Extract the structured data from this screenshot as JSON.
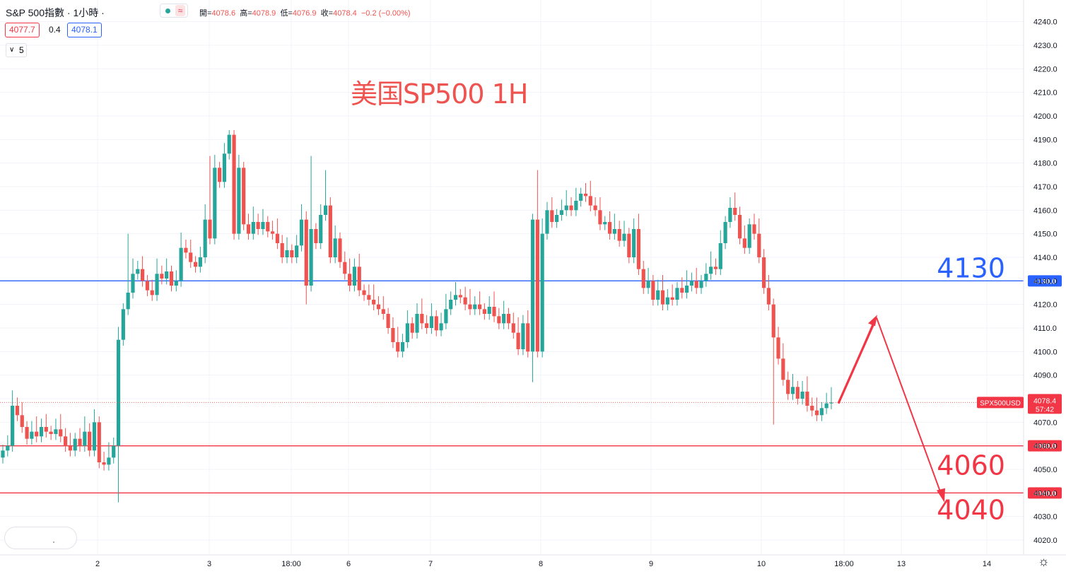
{
  "header": {
    "title": "S&P 500指數 · 1小時 ·",
    "ohlc": {
      "open_label": "開=",
      "open": "4078.6",
      "high_label": "高=",
      "high": "4078.9",
      "low_label": "低=",
      "low": "4076.9",
      "close_label": "收=",
      "close": "4078.4",
      "change": "−0.2 (−0.00%)"
    },
    "bid": "4077.7",
    "spread": "0.4",
    "ask": "4078.1",
    "indicator_count": "5",
    "status_dot_color": "#26a69a",
    "wave_symbol": "≈"
  },
  "annotation": {
    "text": "美国SP500 1H",
    "color": "#ef5350"
  },
  "price_axis": {
    "ticks": [
      "4240.0",
      "4230.0",
      "4220.0",
      "4210.0",
      "4200.0",
      "4190.0",
      "4180.0",
      "4170.0",
      "4160.0",
      "4150.0",
      "4140.0",
      "4130.0",
      "4120.0",
      "4110.0",
      "4100.0",
      "4090.0",
      "4080.0",
      "4070.0",
      "4060.0",
      "4050.0",
      "4040.0",
      "4030.0",
      "4020.0"
    ],
    "range": [
      4016,
      4246
    ]
  },
  "time_axis": {
    "labels": [
      "2",
      "3",
      "18:00",
      "6",
      "7",
      "8",
      "9",
      "10",
      "18:00",
      "13",
      "14"
    ]
  },
  "levels": [
    {
      "label": "4130",
      "value": 4130,
      "color": "#2962ff",
      "axis_label": "4130.0"
    },
    {
      "label": "4060",
      "value": 4060,
      "color": "#f23645",
      "axis_label": "4060.0"
    },
    {
      "label": "4040",
      "value": 4040,
      "color": "#f23645",
      "axis_label": "4040.0"
    }
  ],
  "current": {
    "symbol": "SPX500USD",
    "price": "4078.4",
    "countdown": "57:42",
    "value": 4078.4,
    "color": "#f23645"
  },
  "colors": {
    "up": "#26a69a",
    "down": "#ef5350",
    "grid": "#f0f3fa",
    "axis_text": "#131722"
  },
  "chart_data": {
    "type": "candlestick",
    "series": [
      {
        "name": "SPX500USD",
        "closes": [
          4058,
          4060,
          4077,
          4073,
          4068,
          4063,
          4066,
          4064,
          4068,
          4066,
          4065,
          4067,
          4064,
          4060,
          4058,
          4063,
          4060,
          4066,
          4058,
          4070,
          4053,
          4052,
          4055,
          4060,
          4105,
          4118,
          4125,
          4133,
          4135,
          4130,
          4126,
          4124,
          4133,
          4131,
          4134,
          4128,
          4130,
          4144,
          4142,
          4138,
          4136,
          4140,
          4156,
          4148,
          4178,
          4172,
          4184,
          4192,
          4150,
          4178,
          4154,
          4150,
          4155,
          4152,
          4155,
          4151,
          4150,
          4146,
          4140,
          4143,
          4140,
          4145,
          4156,
          4128,
          4152,
          4146,
          4158,
          4162,
          4140,
          4148,
          4138,
          4133,
          4128,
          4136,
          4126,
          4124,
          4122,
          4120,
          4118,
          4116,
          4110,
          4104,
          4100,
          4104,
          4112,
          4108,
          4116,
          4112,
          4110,
          4115,
          4109,
          4112,
          4118,
          4122,
          4124,
          4123,
          4120,
          4118,
          4120,
          4118,
          4116,
          4119,
          4115,
          4112,
          4116,
          4112,
          4108,
          4101,
          4112,
          4100,
          4156,
          4100,
          4150,
          4160,
          4155,
          4158,
          4160,
          4162,
          4160,
          4164,
          4167,
          4166,
          4162,
          4160,
          4154,
          4155,
          4150,
          4152,
          4147,
          4150,
          4140,
          4152,
          4135,
          4127,
          4130,
          4122,
          4126,
          4120,
          4123,
          4122,
          4127,
          4125,
          4128,
          4130,
          4127,
          4130,
          4133,
          4136,
          4135,
          4146,
          4155,
          4161,
          4158,
          4148,
          4144,
          4154,
          4150,
          4140,
          4127,
          4120,
          4106,
          4097,
          4088,
          4082,
          4085,
          4080,
          4083,
          4077,
          4075,
          4073,
          4076,
          4078,
          4078.4
        ]
      }
    ],
    "x_range_labels": [
      "2",
      "3",
      "18:00",
      "6",
      "7",
      "8",
      "9",
      "10",
      "18:00",
      "13",
      "14"
    ],
    "ylim": [
      4016,
      4246
    ],
    "horizontal_levels": [
      4130,
      4060,
      4040
    ],
    "projection": {
      "type": "arrow-path",
      "points_price": [
        4078,
        4115,
        4036
      ]
    }
  }
}
